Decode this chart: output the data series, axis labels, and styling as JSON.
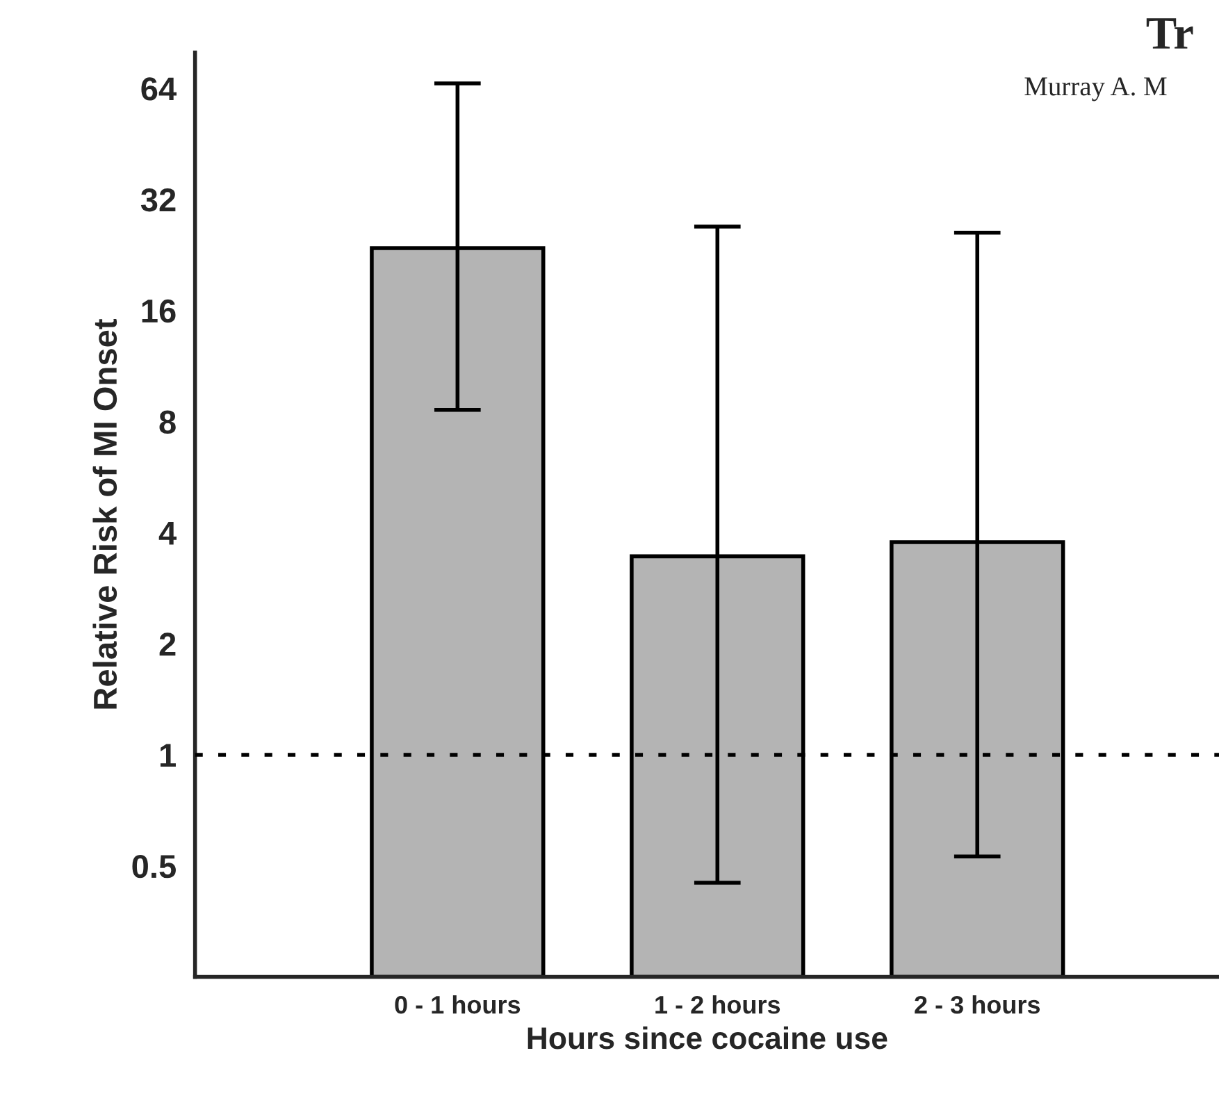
{
  "chart_data": {
    "type": "bar",
    "xlabel": "Hours since cocaine use",
    "ylabel": "Relative Risk of MI Onset",
    "categories": [
      "0 - 1 hours",
      "1 - 2 hours",
      "2 - 3 hours"
    ],
    "values": [
      23.6,
      3.45,
      3.77
    ],
    "color": "#b4b4b4",
    "errors": [
      [
        8.6,
        66
      ],
      [
        0.45,
        27
      ],
      [
        0.53,
        26
      ]
    ],
    "log": true,
    "ylim": [
      0.25,
      80
    ],
    "yticks": [
      0.5,
      1,
      2,
      4,
      8,
      16,
      32,
      64
    ],
    "grid": false,
    "ref_lines": [
      {
        "axis": "y",
        "value": 1,
        "line_style": "dotted",
        "color": "#000000"
      }
    ],
    "annotations": [
      "Tr",
      "Murray A. M"
    ]
  }
}
